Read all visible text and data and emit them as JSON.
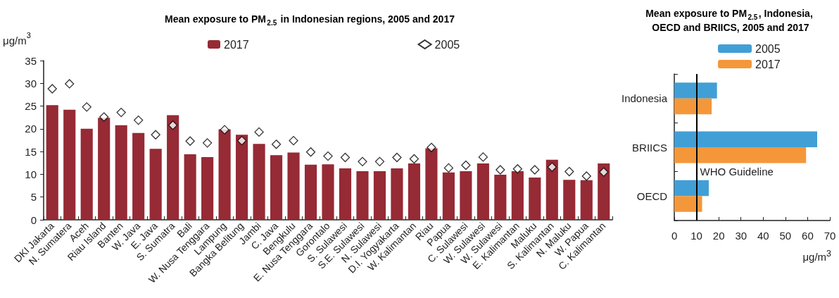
{
  "chart_data": [
    {
      "type": "bar",
      "title": "Mean exposure to PM$_{2.5}$ in Indonesian regions, 2005 and 2017",
      "ylabel": "μg/m$^{3}$",
      "categories": [
        "DKI Jakarta",
        "N. Sumatera",
        "Aceh",
        "Riau Island",
        "Banten",
        "W. Java",
        "E. Java",
        "S. Sumatra",
        "Bali",
        "W. Nusa Tenggara",
        "Lampung",
        "Bangka Belitung",
        "Jambi",
        "C. Java",
        "Bengkulu",
        "E. Nusa Tenggara",
        "Gorontalo",
        "S. Sulawesi",
        "S.E. Sulawesi",
        "N. Sulawesi",
        "D.I. Yogyakarta",
        "W. Kalimantan",
        "Riau",
        "Papua",
        "C. Sulawesi",
        "W. Sulawesi",
        "W. Sulawesi",
        "E. Kalimantan",
        "Maluku",
        "S. Kalimantan",
        "N. Maluku",
        "W. Papua",
        "C. Kalimantan"
      ],
      "series": [
        {
          "name": "2017",
          "type": "bar",
          "color": "#962a35",
          "values": [
            25.2,
            24.2,
            20.0,
            22.4,
            20.8,
            19.1,
            15.6,
            23.0,
            14.4,
            13.8,
            19.9,
            18.7,
            16.7,
            14.2,
            14.8,
            12.1,
            12.2,
            11.3,
            10.7,
            10.7,
            11.3,
            12.4,
            15.7,
            10.4,
            10.7,
            12.4,
            9.9,
            10.7,
            9.3,
            13.2,
            8.8,
            8.7,
            12.4
          ]
        },
        {
          "name": "2005",
          "type": "scatter",
          "color": "#ffffff",
          "marker": "diamond",
          "values": [
            28.8,
            29.9,
            24.8,
            22.6,
            23.6,
            21.9,
            18.7,
            20.8,
            17.3,
            16.9,
            19.8,
            17.4,
            19.3,
            16.6,
            17.4,
            14.9,
            14.0,
            13.7,
            12.8,
            12.8,
            13.7,
            13.4,
            15.9,
            11.4,
            12.0,
            13.8,
            11.0,
            11.2,
            11.0,
            11.6,
            10.6,
            9.6,
            10.5
          ]
        }
      ],
      "ylim": [
        0,
        35
      ],
      "yticks": [
        0,
        5,
        10,
        15,
        20,
        25,
        30,
        35
      ],
      "legend": "top",
      "grid": false
    },
    {
      "type": "bar",
      "orientation": "horizontal",
      "title": "Mean exposure to PM$_{2.5}$, Indonesia, OECD and BRIICS, 2005 and 2017",
      "xlabel": "μg/m$^{3}$",
      "categories": [
        "Indonesia",
        "BRIICS",
        "OECD"
      ],
      "series": [
        {
          "name": "2005",
          "color": "#419fd6",
          "values": [
            19.2,
            64.3,
            15.5
          ]
        },
        {
          "name": "2017",
          "color": "#f4973a",
          "values": [
            16.8,
            59.3,
            12.5
          ]
        }
      ],
      "xlim": [
        0,
        70
      ],
      "xticks": [
        0,
        10,
        20,
        30,
        40,
        50,
        60,
        70
      ],
      "ref_lines": [
        {
          "axis": "x",
          "value": 10,
          "label": "WHO Guideline",
          "color": "#000000"
        }
      ],
      "legend": "top",
      "grid": false
    }
  ]
}
